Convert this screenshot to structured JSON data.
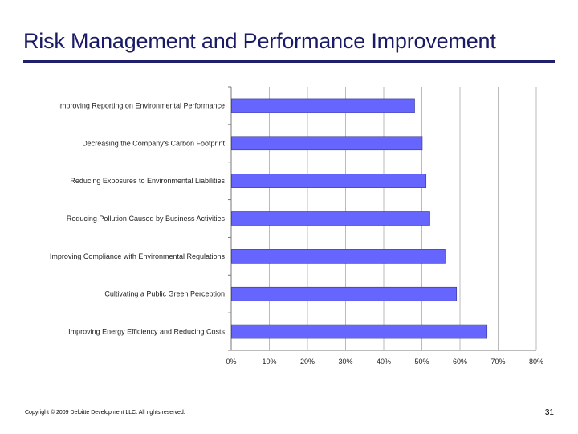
{
  "slide": {
    "title": "Risk Management and Performance Improvement",
    "footer": "Copyright © 2009 Deloitte Development LLC. All rights reserved.",
    "page_number": "31"
  },
  "colors": {
    "bar": "#6666ff",
    "bar_edge": "#33338f",
    "grid": "#bbbbbb",
    "title": "#1a1a66",
    "rule": "#1f1f6b"
  },
  "chart_data": {
    "type": "bar",
    "orientation": "horizontal",
    "categories": [
      "Improving Reporting on Environmental Performance",
      "Decreasing the Company's Carbon Footprint",
      "Reducing Exposures to Environmental Liabilities",
      "Reducing Pollution Caused by Business Activities",
      "Improving Compliance with Environmental Regulations",
      "Cultivating a Public Green Perception",
      "Improving Energy Efficiency and Reducing Costs"
    ],
    "values": [
      48,
      50,
      51,
      52,
      56,
      59,
      67
    ],
    "xlim": [
      0,
      80
    ],
    "xticks": [
      0,
      10,
      20,
      30,
      40,
      50,
      60,
      70,
      80
    ],
    "xtick_labels": [
      "0%",
      "10%",
      "20%",
      "30%",
      "40%",
      "50%",
      "60%",
      "70%",
      "80%"
    ],
    "title": "",
    "xlabel": "",
    "ylabel": "",
    "grid": "vertical",
    "legend": "none"
  }
}
